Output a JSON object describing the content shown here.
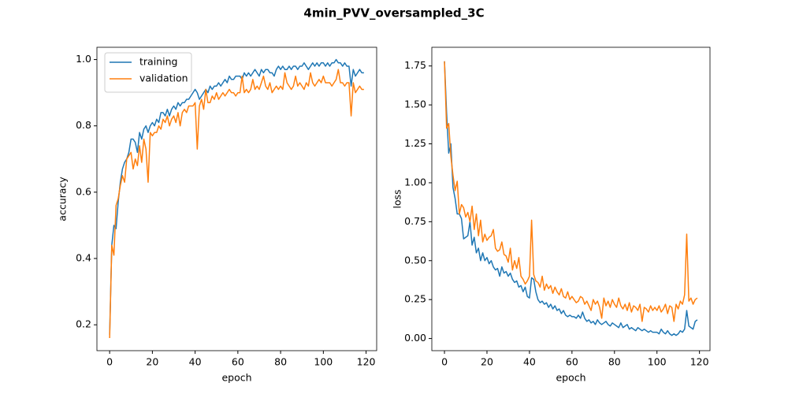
{
  "title": "4min_PVV_oversampled_3C",
  "chart_data": [
    {
      "type": "line",
      "xlabel": "epoch",
      "ylabel": "accuracy",
      "legend": "upper left",
      "xlim": [
        -5.95,
        124.95
      ],
      "ylim": [
        0.122,
        1.037
      ],
      "xticks": [
        0,
        20,
        40,
        60,
        80,
        100,
        120
      ],
      "yticks": [
        0.2,
        0.4,
        0.6,
        0.8,
        {
          "value": 1,
          "label": "1.0"
        }
      ],
      "x": [
        0,
        1,
        2,
        3,
        4,
        5,
        6,
        7,
        8,
        9,
        10,
        11,
        12,
        13,
        14,
        15,
        16,
        17,
        18,
        19,
        20,
        21,
        22,
        23,
        24,
        25,
        26,
        27,
        28,
        29,
        30,
        31,
        32,
        33,
        34,
        35,
        36,
        37,
        38,
        39,
        40,
        41,
        42,
        43,
        44,
        45,
        46,
        47,
        48,
        49,
        50,
        51,
        52,
        53,
        54,
        55,
        56,
        57,
        58,
        59,
        60,
        61,
        62,
        63,
        64,
        65,
        66,
        67,
        68,
        69,
        70,
        71,
        72,
        73,
        74,
        75,
        76,
        77,
        78,
        79,
        80,
        81,
        82,
        83,
        84,
        85,
        86,
        87,
        88,
        89,
        90,
        91,
        92,
        93,
        94,
        95,
        96,
        97,
        98,
        99,
        100,
        101,
        102,
        103,
        104,
        105,
        106,
        107,
        108,
        109,
        110,
        111,
        112,
        113,
        114,
        115,
        116,
        117,
        118,
        119
      ],
      "series": [
        {
          "name": "training",
          "color": "#1f77b4",
          "values": [
            0.17,
            0.44,
            0.5,
            0.49,
            0.57,
            0.63,
            0.67,
            0.69,
            0.7,
            0.72,
            0.76,
            0.76,
            0.75,
            0.72,
            0.78,
            0.76,
            0.79,
            0.8,
            0.78,
            0.8,
            0.81,
            0.8,
            0.82,
            0.81,
            0.84,
            0.84,
            0.83,
            0.85,
            0.83,
            0.85,
            0.86,
            0.85,
            0.87,
            0.86,
            0.87,
            0.87,
            0.88,
            0.88,
            0.89,
            0.9,
            0.91,
            0.9,
            0.88,
            0.89,
            0.9,
            0.91,
            0.9,
            0.92,
            0.91,
            0.92,
            0.92,
            0.93,
            0.92,
            0.93,
            0.94,
            0.93,
            0.95,
            0.94,
            0.94,
            0.95,
            0.95,
            0.95,
            0.94,
            0.96,
            0.95,
            0.96,
            0.95,
            0.96,
            0.97,
            0.96,
            0.95,
            0.97,
            0.96,
            0.97,
            0.97,
            0.96,
            0.96,
            0.95,
            0.97,
            0.98,
            0.97,
            0.98,
            0.97,
            0.97,
            0.98,
            0.97,
            0.98,
            0.98,
            0.97,
            0.98,
            0.98,
            0.99,
            0.98,
            0.97,
            0.98,
            0.99,
            0.98,
            0.99,
            0.98,
            0.99,
            0.99,
            0.98,
            0.99,
            0.98,
            0.99,
            0.99,
            1.0,
            0.99,
            0.99,
            0.98,
            0.99,
            0.98,
            0.98,
            0.92,
            0.97,
            0.95,
            0.96,
            0.97,
            0.96,
            0.96
          ]
        },
        {
          "name": "validation",
          "color": "#ff7f0e",
          "values": [
            0.16,
            0.44,
            0.41,
            0.56,
            0.58,
            0.62,
            0.65,
            0.63,
            0.7,
            0.71,
            0.72,
            0.67,
            0.7,
            0.68,
            0.74,
            0.69,
            0.76,
            0.73,
            0.63,
            0.78,
            0.77,
            0.78,
            0.78,
            0.8,
            0.79,
            0.82,
            0.81,
            0.83,
            0.8,
            0.82,
            0.83,
            0.81,
            0.84,
            0.8,
            0.84,
            0.85,
            0.84,
            0.86,
            0.86,
            0.86,
            0.87,
            0.73,
            0.86,
            0.88,
            0.85,
            0.91,
            0.87,
            0.87,
            0.89,
            0.88,
            0.9,
            0.88,
            0.89,
            0.9,
            0.89,
            0.9,
            0.91,
            0.9,
            0.9,
            0.89,
            0.9,
            0.9,
            0.95,
            0.9,
            0.91,
            0.9,
            0.91,
            0.94,
            0.91,
            0.92,
            0.91,
            0.93,
            0.95,
            0.92,
            0.91,
            0.93,
            0.9,
            0.91,
            0.92,
            0.91,
            0.92,
            0.91,
            0.96,
            0.93,
            0.92,
            0.91,
            0.92,
            0.95,
            0.92,
            0.93,
            0.92,
            0.91,
            0.93,
            0.92,
            0.96,
            0.93,
            0.92,
            0.93,
            0.94,
            0.93,
            0.95,
            0.93,
            0.93,
            0.93,
            0.92,
            0.93,
            0.94,
            0.97,
            0.93,
            0.93,
            0.92,
            0.93,
            0.93,
            0.83,
            0.93,
            0.9,
            0.91,
            0.92,
            0.91,
            0.91
          ]
        }
      ]
    },
    {
      "type": "line",
      "xlabel": "epoch",
      "ylabel": "loss",
      "xlim": [
        -5.95,
        124.95
      ],
      "ylim": [
        -0.078,
        1.87
      ],
      "xticks": [
        0,
        20,
        40,
        60,
        80,
        100,
        120
      ],
      "yticks": [
        {
          "value": 0,
          "label": "0.00"
        },
        0.25,
        {
          "value": 0.5,
          "label": "0.50"
        },
        0.75,
        {
          "value": 1,
          "label": "1.00"
        },
        1.25,
        {
          "value": 1.5,
          "label": "1.50"
        },
        1.75
      ],
      "x": [
        0,
        1,
        2,
        3,
        4,
        5,
        6,
        7,
        8,
        9,
        10,
        11,
        12,
        13,
        14,
        15,
        16,
        17,
        18,
        19,
        20,
        21,
        22,
        23,
        24,
        25,
        26,
        27,
        28,
        29,
        30,
        31,
        32,
        33,
        34,
        35,
        36,
        37,
        38,
        39,
        40,
        41,
        42,
        43,
        44,
        45,
        46,
        47,
        48,
        49,
        50,
        51,
        52,
        53,
        54,
        55,
        56,
        57,
        58,
        59,
        60,
        61,
        62,
        63,
        64,
        65,
        66,
        67,
        68,
        69,
        70,
        71,
        72,
        73,
        74,
        75,
        76,
        77,
        78,
        79,
        80,
        81,
        82,
        83,
        84,
        85,
        86,
        87,
        88,
        89,
        90,
        91,
        92,
        93,
        94,
        95,
        96,
        97,
        98,
        99,
        100,
        101,
        102,
        103,
        104,
        105,
        106,
        107,
        108,
        109,
        110,
        111,
        112,
        113,
        114,
        115,
        116,
        117,
        118,
        119
      ],
      "series": [
        {
          "color": "#1f77b4",
          "values": [
            1.78,
            1.45,
            1.19,
            1.25,
            0.97,
            0.9,
            0.8,
            0.8,
            0.77,
            0.64,
            0.65,
            0.66,
            0.75,
            0.6,
            0.65,
            0.55,
            0.58,
            0.5,
            0.55,
            0.5,
            0.52,
            0.48,
            0.5,
            0.46,
            0.44,
            0.45,
            0.4,
            0.46,
            0.42,
            0.43,
            0.4,
            0.42,
            0.38,
            0.36,
            0.37,
            0.33,
            0.34,
            0.3,
            0.33,
            0.27,
            0.26,
            0.39,
            0.38,
            0.3,
            0.25,
            0.23,
            0.24,
            0.22,
            0.23,
            0.2,
            0.22,
            0.19,
            0.21,
            0.18,
            0.19,
            0.16,
            0.18,
            0.15,
            0.14,
            0.15,
            0.14,
            0.14,
            0.13,
            0.15,
            0.13,
            0.17,
            0.13,
            0.11,
            0.12,
            0.1,
            0.11,
            0.09,
            0.12,
            0.1,
            0.09,
            0.1,
            0.11,
            0.09,
            0.08,
            0.1,
            0.09,
            0.08,
            0.07,
            0.1,
            0.07,
            0.08,
            0.09,
            0.06,
            0.07,
            0.06,
            0.05,
            0.07,
            0.06,
            0.05,
            0.06,
            0.05,
            0.04,
            0.05,
            0.04,
            0.04,
            0.04,
            0.03,
            0.06,
            0.04,
            0.03,
            0.05,
            0.03,
            0.02,
            0.03,
            0.02,
            0.03,
            0.05,
            0.04,
            0.06,
            0.18,
            0.08,
            0.07,
            0.06,
            0.11,
            0.12
          ]
        },
        {
          "color": "#ff7f0e",
          "values": [
            1.78,
            1.35,
            1.38,
            1.17,
            1.05,
            0.95,
            1.01,
            0.8,
            0.86,
            0.84,
            0.78,
            0.81,
            0.75,
            0.85,
            0.7,
            0.8,
            0.66,
            0.76,
            0.62,
            0.67,
            0.63,
            0.65,
            0.66,
            0.7,
            0.58,
            0.56,
            0.57,
            0.62,
            0.54,
            0.53,
            0.49,
            0.58,
            0.44,
            0.5,
            0.45,
            0.52,
            0.4,
            0.38,
            0.35,
            0.37,
            0.4,
            0.76,
            0.41,
            0.37,
            0.36,
            0.33,
            0.4,
            0.31,
            0.35,
            0.32,
            0.34,
            0.29,
            0.33,
            0.3,
            0.28,
            0.32,
            0.27,
            0.26,
            0.3,
            0.25,
            0.27,
            0.25,
            0.23,
            0.24,
            0.27,
            0.26,
            0.22,
            0.24,
            0.21,
            0.18,
            0.25,
            0.22,
            0.24,
            0.2,
            0.13,
            0.26,
            0.21,
            0.24,
            0.2,
            0.25,
            0.22,
            0.2,
            0.26,
            0.21,
            0.19,
            0.22,
            0.18,
            0.23,
            0.17,
            0.21,
            0.2,
            0.18,
            0.22,
            0.11,
            0.2,
            0.19,
            0.17,
            0.21,
            0.18,
            0.2,
            0.18,
            0.21,
            0.17,
            0.19,
            0.22,
            0.16,
            0.21,
            0.2,
            0.11,
            0.22,
            0.19,
            0.24,
            0.22,
            0.28,
            0.67,
            0.24,
            0.26,
            0.22,
            0.25,
            0.26
          ]
        }
      ]
    }
  ]
}
